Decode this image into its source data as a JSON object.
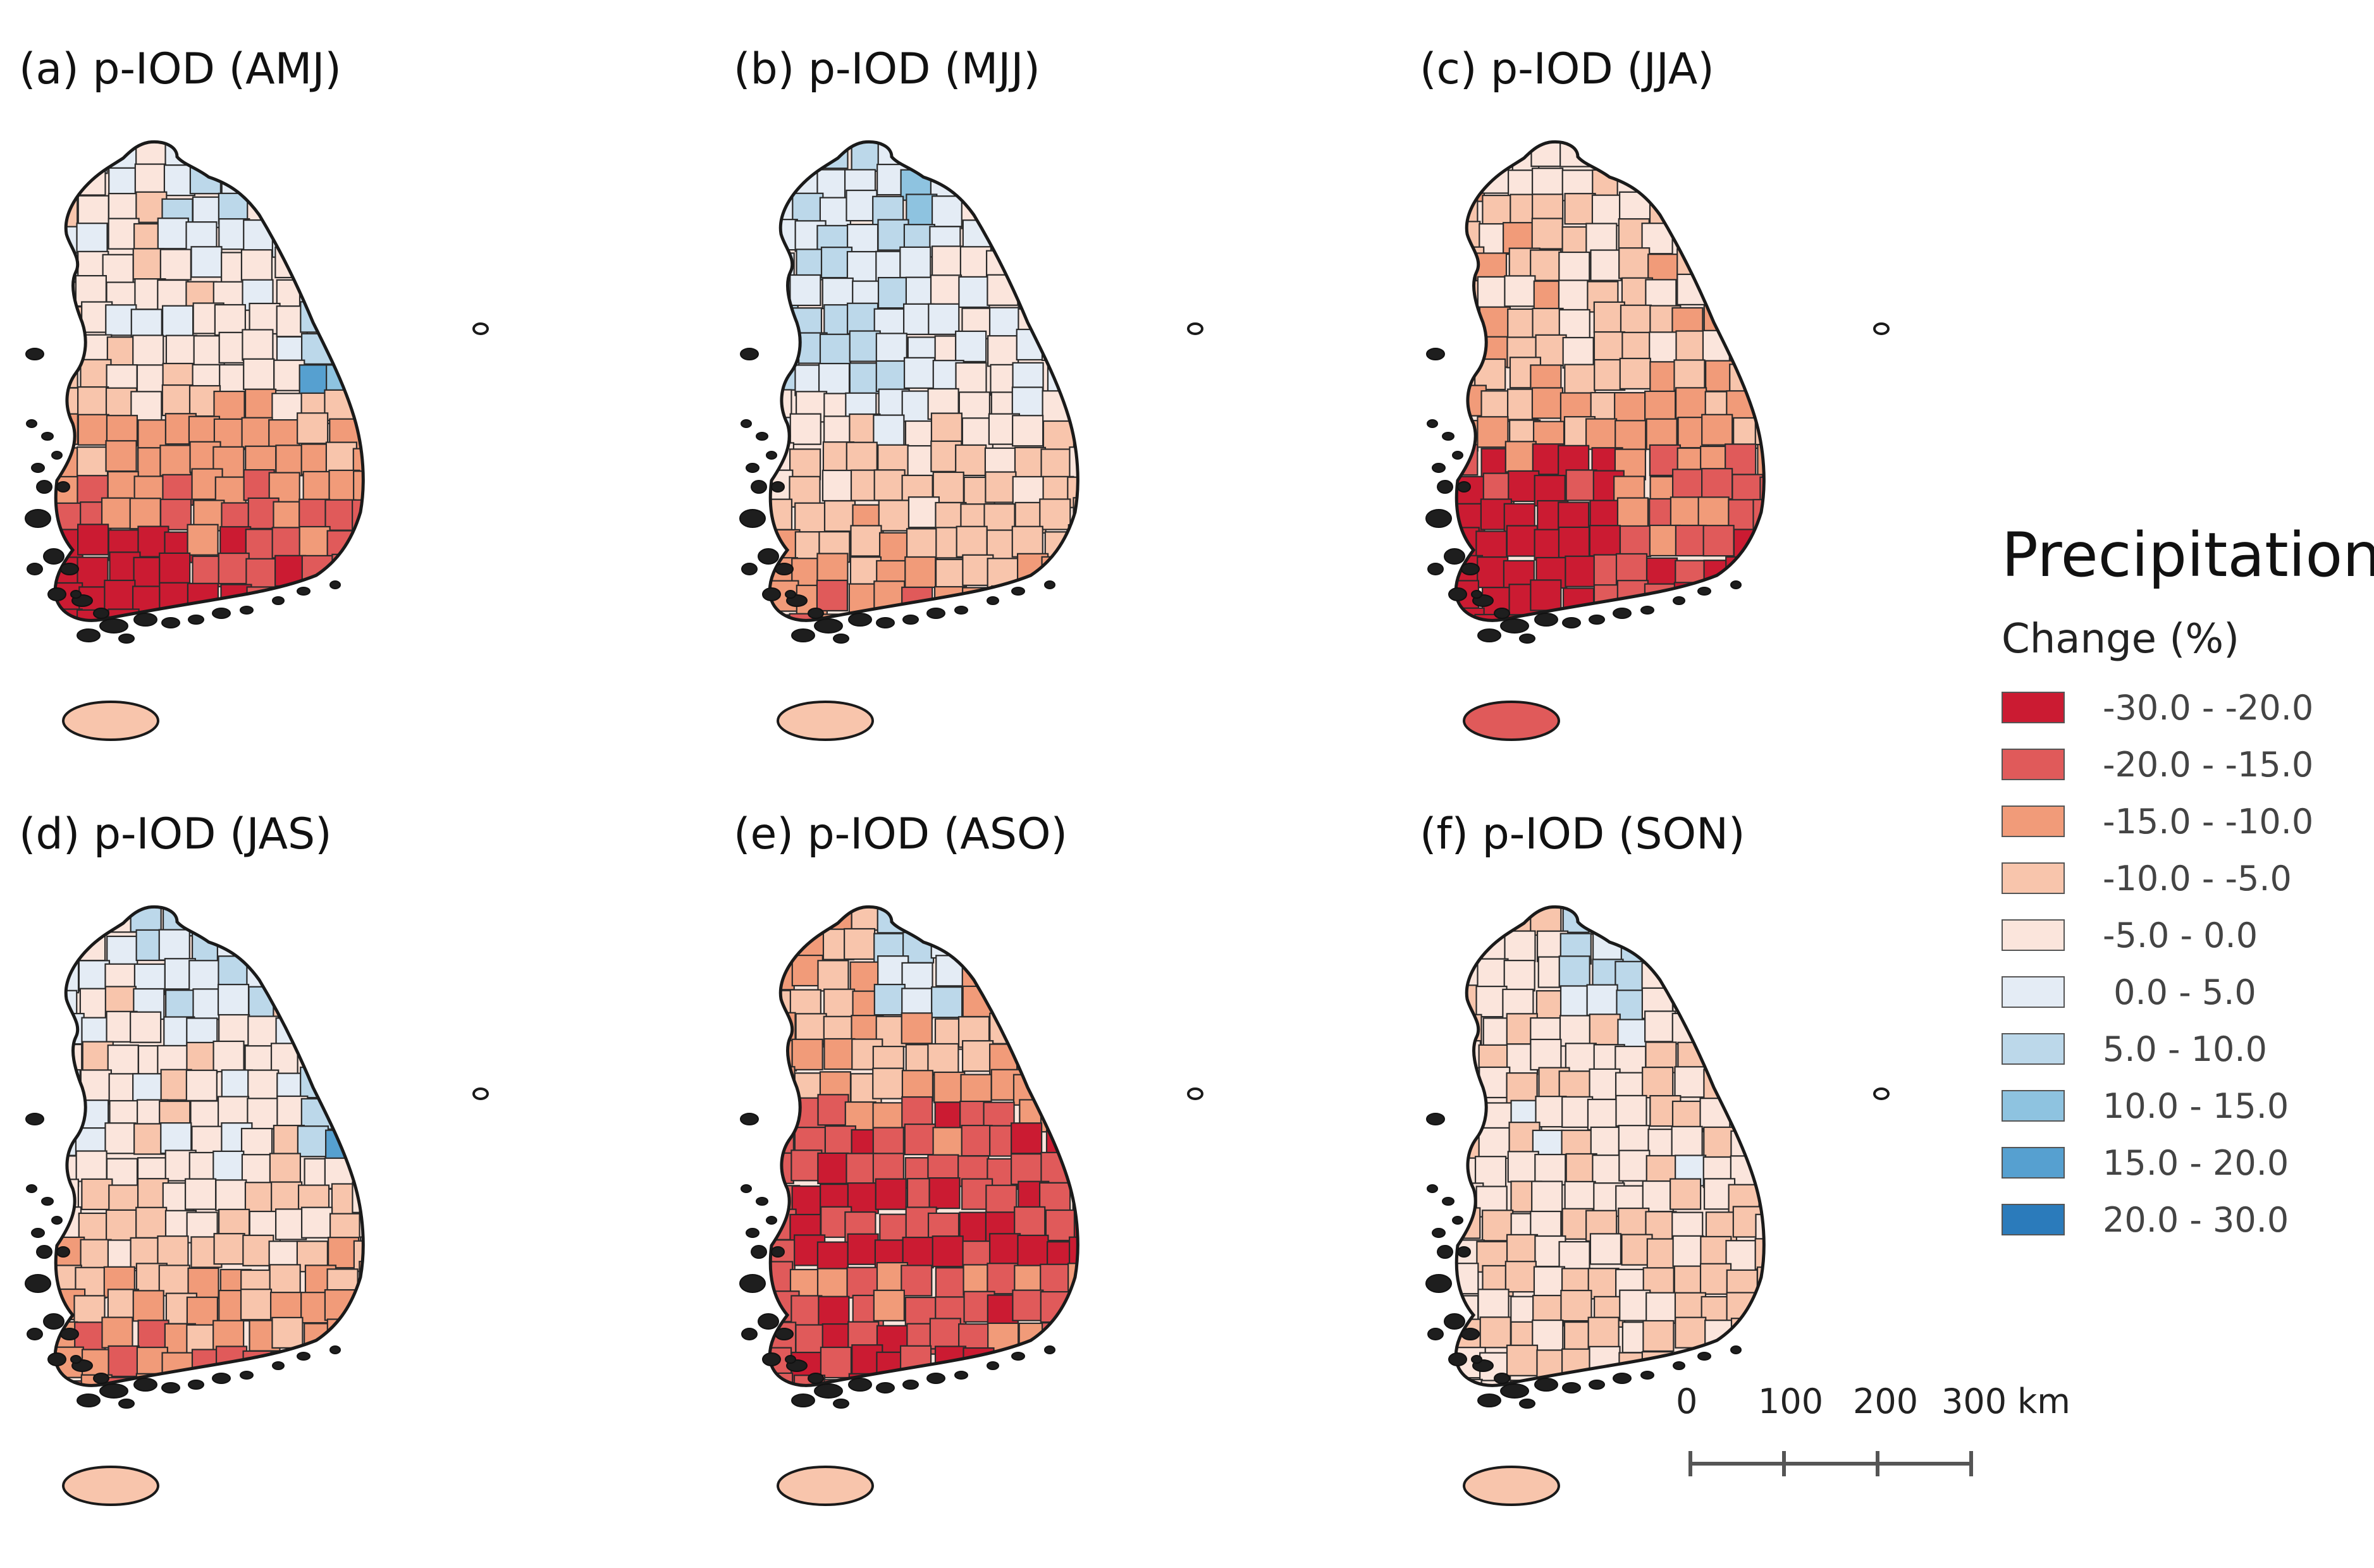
{
  "figure": {
    "panels": [
      {
        "id": "a",
        "title": "(a) p-IOD (AMJ)"
      },
      {
        "id": "b",
        "title": "(b) p-IOD (MJJ)"
      },
      {
        "id": "c",
        "title": "(c) p-IOD (JJA)"
      },
      {
        "id": "d",
        "title": "(d) p-IOD (JAS)"
      },
      {
        "id": "e",
        "title": "(e) p-IOD (ASO)"
      },
      {
        "id": "f",
        "title": "(f) p-IOD (SON)"
      }
    ]
  },
  "legend": {
    "title": "Precipitation",
    "subtitle": "Change (%)",
    "classes": [
      {
        "label": "-30.0 - -20.0",
        "color": "#cb1b32"
      },
      {
        "label": "-20.0 - -15.0",
        "color": "#e05a5a"
      },
      {
        "label": "-15.0 - -10.0",
        "color": "#f19b79"
      },
      {
        "label": "-10.0 - -5.0",
        "color": "#f8c5ac"
      },
      {
        "label": "-5.0 - 0.0",
        "color": "#fbe5dc"
      },
      {
        "label": " 0.0 - 5.0",
        "color": "#e4ecf5"
      },
      {
        "label": "5.0 - 10.0",
        "color": "#bcd8ea"
      },
      {
        "label": "10.0 - 15.0",
        "color": "#8ec3e0"
      },
      {
        "label": "15.0 - 20.0",
        "color": "#56a0d0"
      },
      {
        "label": "20.0 - 30.0",
        "color": "#2b7bbb"
      }
    ]
  },
  "scalebar": {
    "labels": [
      "0",
      "100",
      "200",
      "300"
    ],
    "unit": "km"
  }
}
